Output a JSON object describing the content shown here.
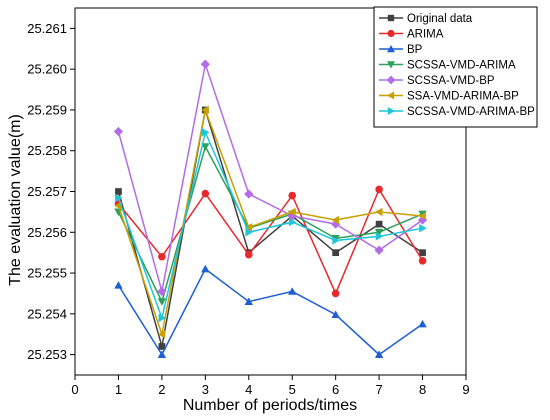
{
  "chart_data": {
    "type": "line",
    "title": "",
    "xlabel": "Number of periods/times",
    "ylabel": "The evaluation value(m)",
    "xlim": [
      0,
      9
    ],
    "ylim": [
      25.2525,
      25.2615
    ],
    "x_ticks": [
      "0",
      "1",
      "2",
      "3",
      "4",
      "5",
      "6",
      "7",
      "8",
      "9"
    ],
    "y_ticks": [
      "25.253",
      "25.254",
      "25.255",
      "25.256",
      "25.257",
      "25.258",
      "25.259",
      "25.260",
      "25.261"
    ],
    "grid": false,
    "legend_position": "top-right",
    "x": [
      1,
      2,
      3,
      4,
      5,
      6,
      7,
      8
    ],
    "series": [
      {
        "name": "Original data",
        "color": "#404040",
        "marker": "square",
        "values": [
          25.257,
          25.2532,
          25.259,
          25.2555,
          25.2564,
          25.2555,
          25.2562,
          25.2555
        ]
      },
      {
        "name": "ARIMA",
        "color": "#e8292c",
        "marker": "circle",
        "values": [
          25.2567,
          25.2554,
          25.25695,
          25.25545,
          25.2569,
          25.2545,
          25.25705,
          25.2553
        ]
      },
      {
        "name": "BP",
        "color": "#1f5fd6",
        "marker": "triangle-up",
        "values": [
          25.2547,
          25.253,
          25.2551,
          25.2543,
          25.25455,
          25.25398,
          25.253,
          25.25375
        ]
      },
      {
        "name": "SCSSA-VMD-ARIMA",
        "color": "#2ea05c",
        "marker": "triangle-down",
        "values": [
          25.2565,
          25.2543,
          25.2581,
          25.2561,
          25.25645,
          25.25585,
          25.256,
          25.25645
        ]
      },
      {
        "name": "SCSSA-VMD-BP",
        "color": "#b36be8",
        "marker": "diamond",
        "values": [
          25.25847,
          25.25455,
          25.26012,
          25.25694,
          25.2564,
          25.2562,
          25.25556,
          25.2563
        ]
      },
      {
        "name": "SSA-VMD-ARIMA-BP",
        "color": "#c8a000",
        "marker": "triangle-left",
        "values": [
          25.25665,
          25.2535,
          25.259,
          25.25612,
          25.2565,
          25.2563,
          25.2565,
          25.2564
        ]
      },
      {
        "name": "SCSSA-VMD-ARIMA-BP",
        "color": "#1ec6d8",
        "marker": "triangle-right",
        "values": [
          25.25684,
          25.2539,
          25.25845,
          25.256,
          25.25625,
          25.2558,
          25.2559,
          25.2561
        ]
      }
    ]
  }
}
